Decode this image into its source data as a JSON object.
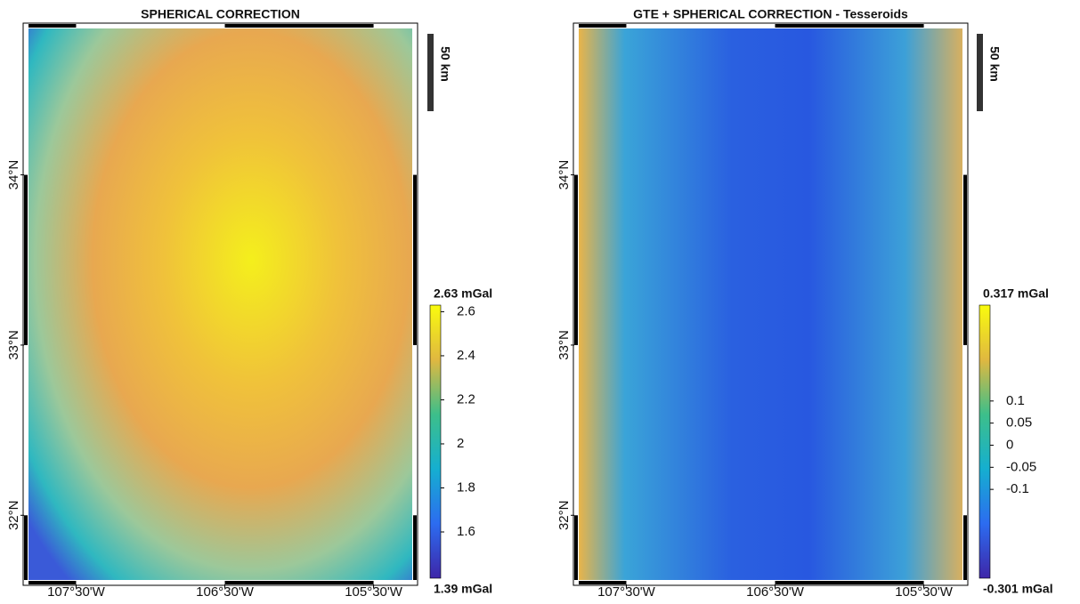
{
  "chart_data": [
    {
      "type": "map",
      "title": "SPHERICAL CORRECTION",
      "xlim": [
        -107.82,
        -105.24
      ],
      "ylim": [
        31.62,
        34.86
      ],
      "xticks": [
        {
          "value": -107.5,
          "label": "107°30'W"
        },
        {
          "value": -106.5,
          "label": "106°30'W"
        },
        {
          "value": -105.5,
          "label": "105°30'W"
        }
      ],
      "yticks": [
        {
          "value": 32,
          "label": "32°N"
        },
        {
          "value": 33,
          "label": "33°N"
        },
        {
          "value": 34,
          "label": "34°N"
        }
      ],
      "clim": [
        1.39,
        2.63
      ],
      "clim_labels": [
        "1.39 mGal",
        "2.63 mGal"
      ],
      "cticks": [
        1.6,
        1.8,
        2,
        2.2,
        2.4,
        2.6
      ],
      "scalebar_label": "50 km"
    },
    {
      "type": "map",
      "title": "GTE + SPHERICAL CORRECTION - Tesseroids",
      "xlim": [
        -107.82,
        -105.24
      ],
      "ylim": [
        31.62,
        34.86
      ],
      "xticks": [
        {
          "value": -107.5,
          "label": "107°30'W"
        },
        {
          "value": -106.5,
          "label": "106°30'W"
        },
        {
          "value": -105.5,
          "label": "105°30'W"
        }
      ],
      "yticks": [
        {
          "value": 32,
          "label": "32°N"
        },
        {
          "value": 33,
          "label": "33°N"
        },
        {
          "value": 34,
          "label": "34°N"
        }
      ],
      "clim": [
        -0.301,
        0.317
      ],
      "clim_labels": [
        "-0.301 mGal",
        "0.317 mGal"
      ],
      "cticks": [
        -0.1,
        -0.05,
        0,
        0.05,
        0.1
      ],
      "scalebar_label": "50 km"
    }
  ]
}
